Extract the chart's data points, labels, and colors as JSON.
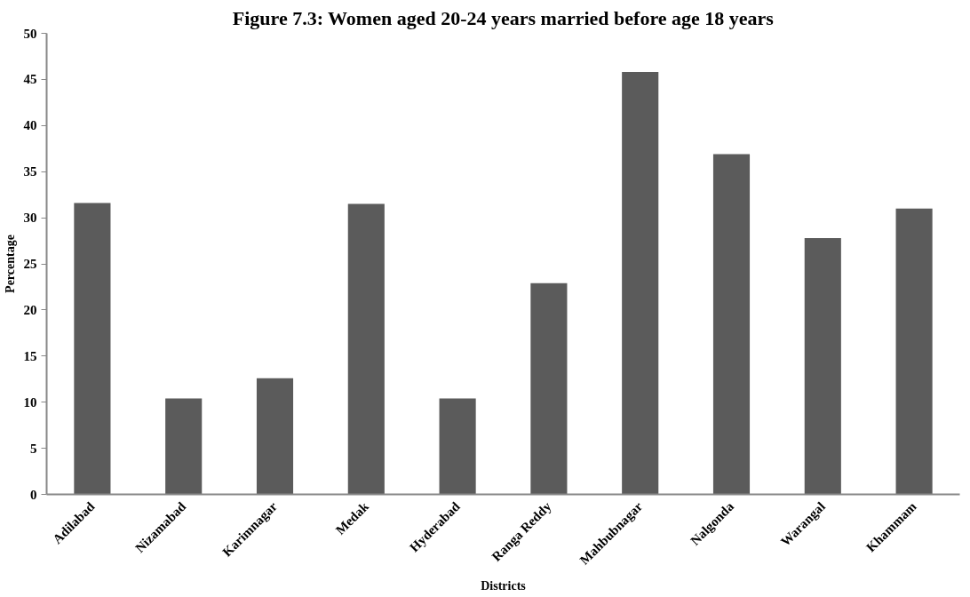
{
  "chart_data": {
    "type": "bar",
    "title": "Figure 7.3: Women aged 20-24 years married before age 18 years",
    "xlabel": "Districts",
    "ylabel": "Percentage",
    "categories": [
      "Adilabad",
      "Nizamabad",
      "Karimnagar",
      "Medak",
      "Hyderabad",
      "Ranga Reddy",
      "Mahbubnagar",
      "Nalgonda",
      "Warangal",
      "Khammam"
    ],
    "values": [
      31.6,
      10.4,
      12.6,
      31.5,
      10.4,
      22.9,
      45.8,
      36.9,
      27.8,
      31.0
    ],
    "color": "#5b5b5b",
    "ylim": [
      0,
      50
    ],
    "yticks": [
      0,
      5,
      10,
      15,
      20,
      25,
      30,
      35,
      40,
      45,
      50
    ],
    "grid": false
  }
}
